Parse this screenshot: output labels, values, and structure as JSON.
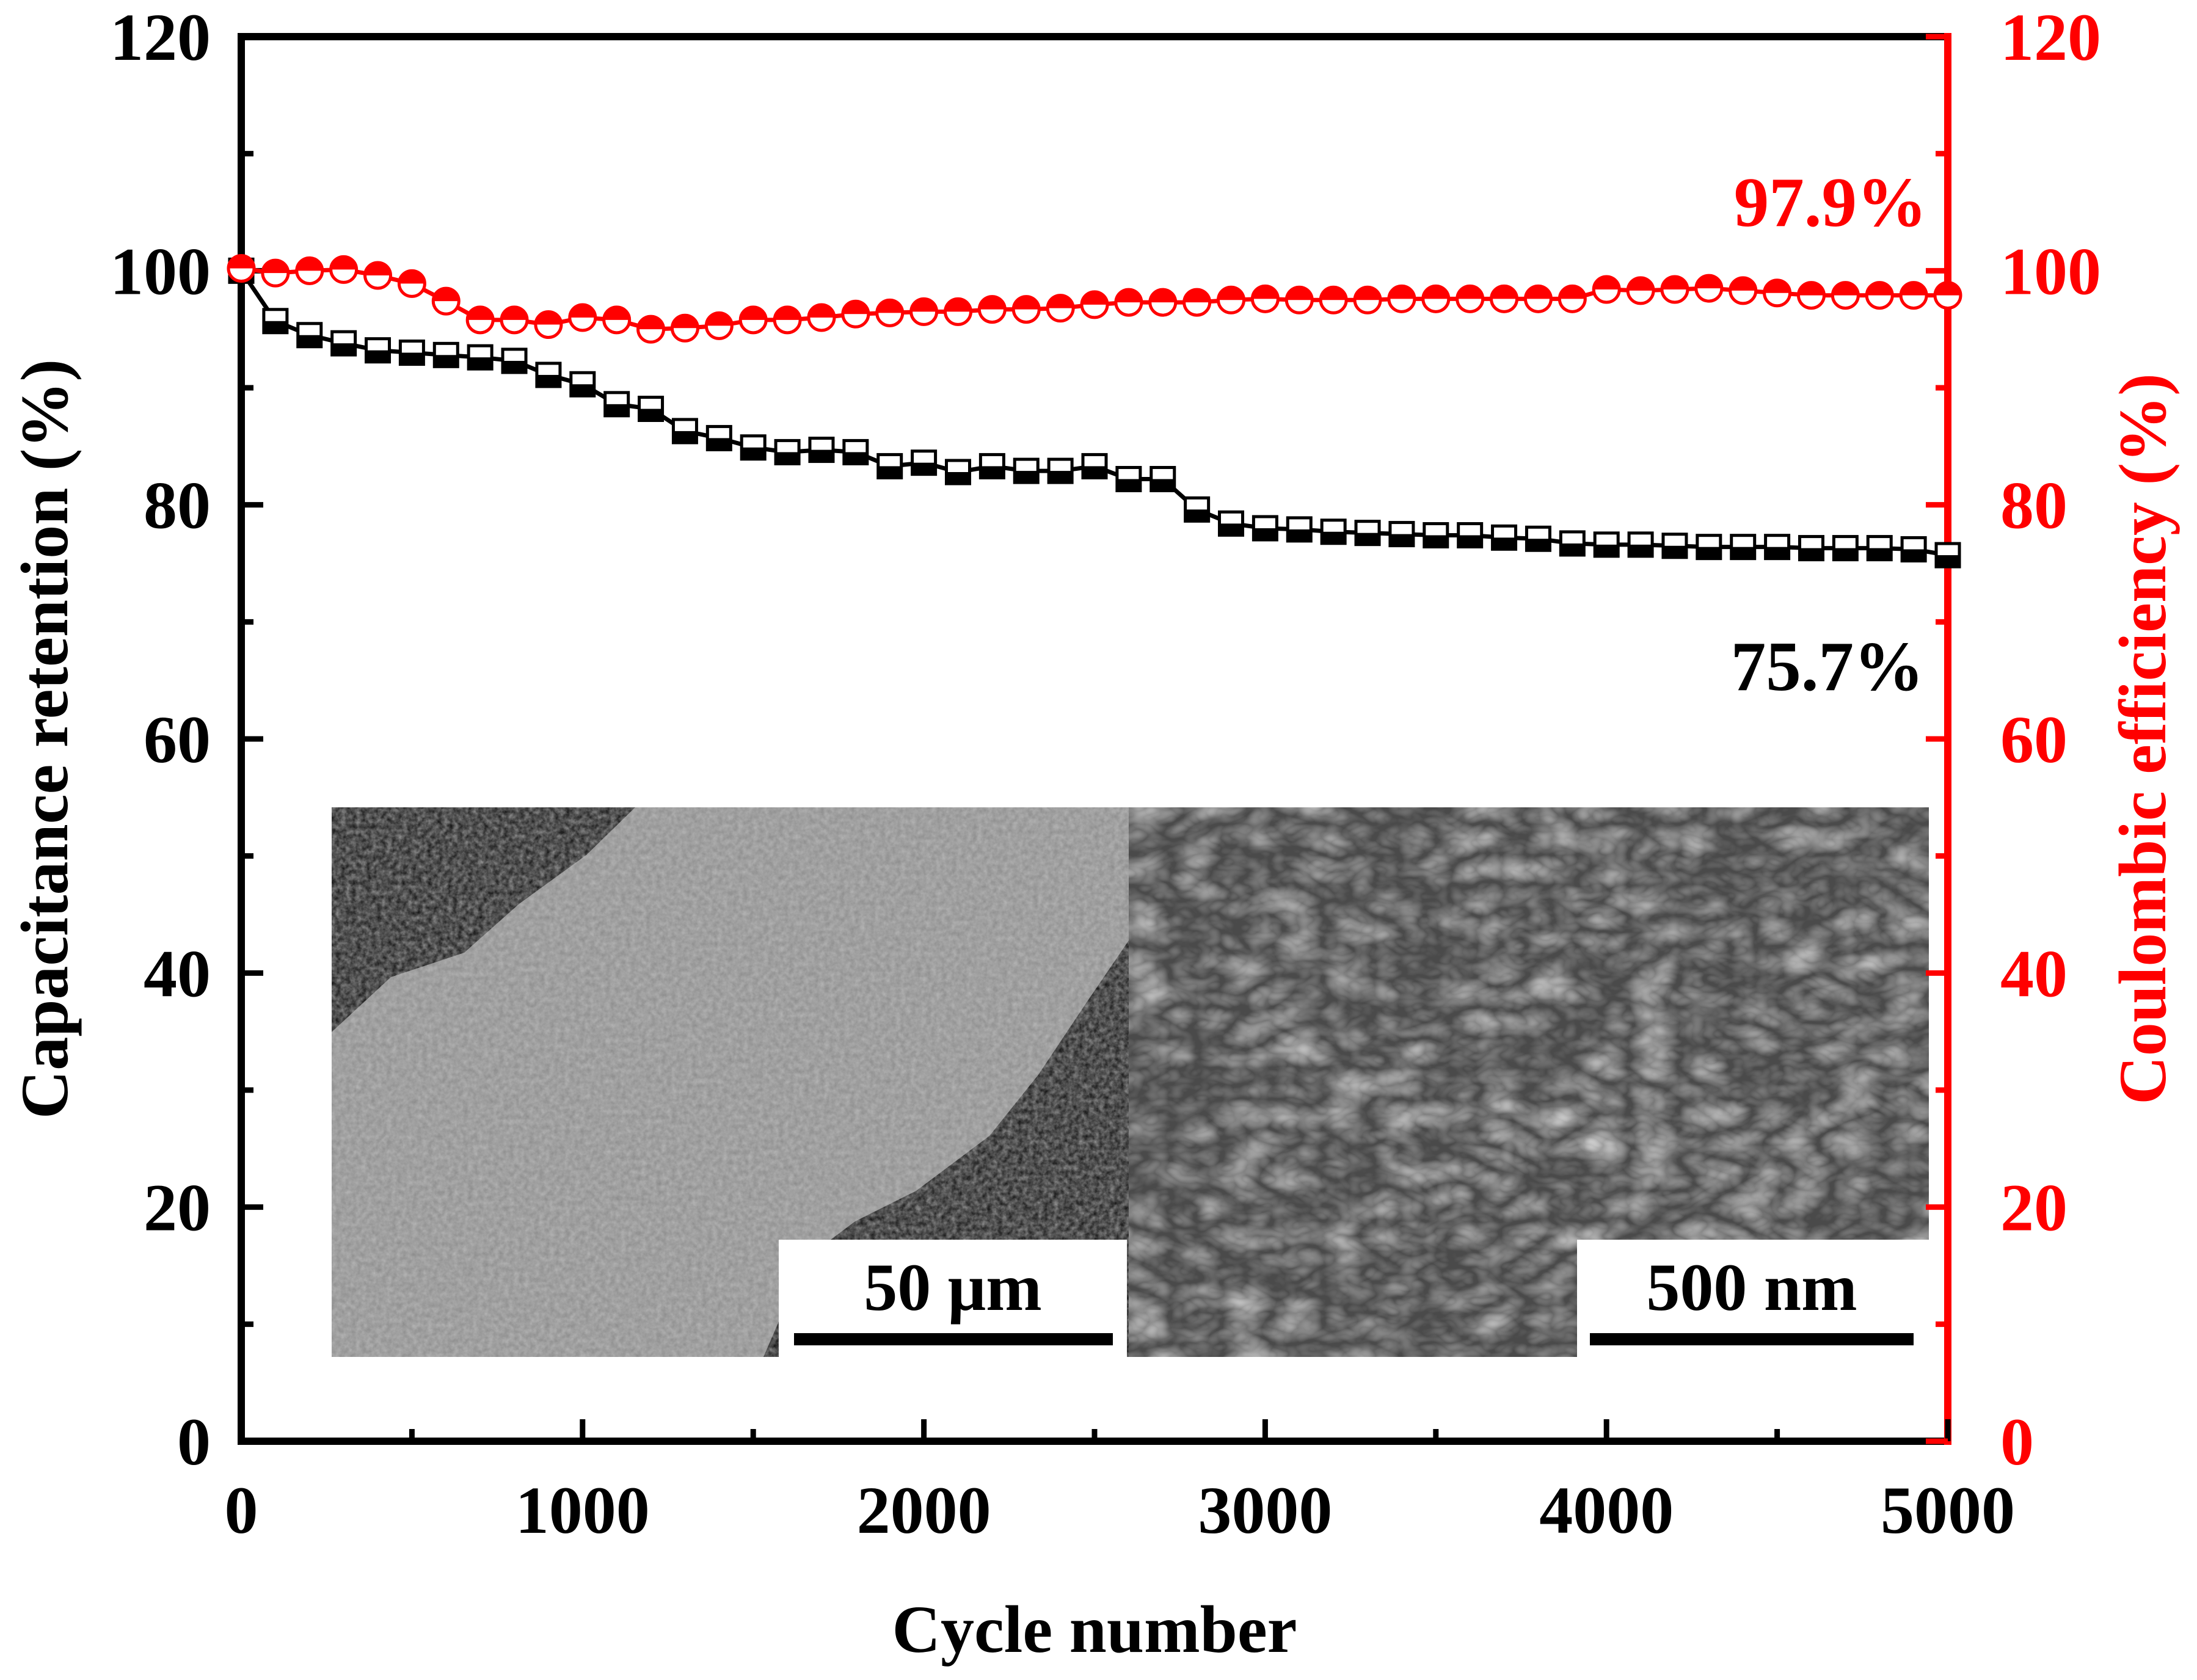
{
  "chart_data": {
    "type": "scatter",
    "title": "",
    "xlabel": "Cycle number",
    "ylabel_left": "Capacitance retention (%)",
    "ylabel_right": "Coulombic efficiency (%)",
    "xlim": [
      0,
      5000
    ],
    "ylim_left": [
      0,
      120
    ],
    "ylim_right": [
      0,
      120
    ],
    "x_ticks": [
      "0",
      "1000",
      "2000",
      "3000",
      "4000",
      "5000"
    ],
    "y_ticks_left": [
      "0",
      "20",
      "40",
      "60",
      "80",
      "100",
      "120"
    ],
    "y_ticks_right": [
      "0",
      "20",
      "40",
      "60",
      "80",
      "100",
      "120"
    ],
    "grid": false,
    "colors": {
      "retention": "#000000",
      "efficiency": "#ff0000"
    },
    "series": [
      {
        "name": "Capacitance retention",
        "axis": "left",
        "marker": "half-filled-square",
        "x": [
          0,
          100,
          200,
          300,
          400,
          500,
          600,
          700,
          800,
          900,
          1000,
          1100,
          1200,
          1300,
          1400,
          1500,
          1600,
          1700,
          1800,
          1900,
          2000,
          2100,
          2200,
          2300,
          2400,
          2500,
          2600,
          2700,
          2800,
          2900,
          3000,
          3100,
          3200,
          3300,
          3400,
          3500,
          3600,
          3700,
          3800,
          3900,
          4000,
          4100,
          4200,
          4300,
          4400,
          4500,
          4600,
          4700,
          4800,
          4900,
          5000
        ],
        "values": [
          100,
          95.7,
          94.5,
          93.8,
          93.2,
          93.0,
          92.8,
          92.6,
          92.3,
          91.1,
          90.3,
          88.6,
          88.2,
          86.3,
          85.7,
          84.9,
          84.5,
          84.7,
          84.5,
          83.3,
          83.6,
          82.8,
          83.3,
          82.9,
          82.9,
          83.3,
          82.2,
          82.2,
          79.6,
          78.4,
          78.0,
          77.9,
          77.7,
          77.6,
          77.5,
          77.4,
          77.4,
          77.2,
          77.1,
          76.7,
          76.6,
          76.6,
          76.5,
          76.4,
          76.4,
          76.4,
          76.3,
          76.3,
          76.3,
          76.2,
          75.7
        ]
      },
      {
        "name": "Coulombic efficiency",
        "axis": "right",
        "marker": "half-filled-circle",
        "x": [
          0,
          100,
          200,
          300,
          400,
          500,
          600,
          700,
          800,
          900,
          1000,
          1100,
          1200,
          1300,
          1400,
          1500,
          1600,
          1700,
          1800,
          1900,
          2000,
          2100,
          2200,
          2300,
          2400,
          2500,
          2600,
          2700,
          2800,
          2900,
          3000,
          3100,
          3200,
          3300,
          3400,
          3500,
          3600,
          3700,
          3800,
          3900,
          4000,
          4100,
          4200,
          4300,
          4400,
          4500,
          4600,
          4700,
          4800,
          4900,
          5000
        ],
        "values": [
          100.2,
          99.8,
          100.0,
          100.1,
          99.6,
          98.9,
          97.4,
          95.8,
          95.8,
          95.4,
          96.0,
          95.8,
          95.0,
          95.1,
          95.3,
          95.8,
          95.8,
          96.0,
          96.3,
          96.4,
          96.5,
          96.5,
          96.7,
          96.7,
          96.8,
          97.1,
          97.3,
          97.3,
          97.3,
          97.5,
          97.6,
          97.5,
          97.5,
          97.5,
          97.6,
          97.6,
          97.6,
          97.6,
          97.6,
          97.6,
          98.4,
          98.3,
          98.4,
          98.5,
          98.3,
          98.1,
          97.9,
          97.9,
          97.9,
          97.9,
          97.9
        ]
      }
    ],
    "annotations": [
      {
        "text": "97.9%",
        "color": "#ff0000",
        "series": "Coulombic efficiency"
      },
      {
        "text": "75.7%",
        "color": "#000000",
        "series": "Capacitance retention"
      }
    ],
    "insets": [
      {
        "type": "SEM micrograph",
        "scale_bar": "50 μm"
      },
      {
        "type": "SEM micrograph",
        "scale_bar": "500 nm"
      }
    ]
  }
}
